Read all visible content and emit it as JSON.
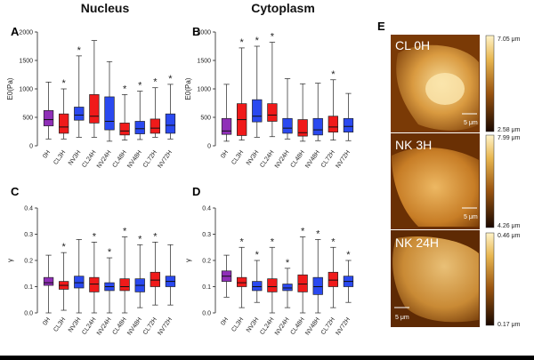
{
  "figure": {
    "nucleus_title": "Nucleus",
    "cytoplasm_title": "Cytoplasm"
  },
  "chart_data": [
    {
      "id": "A",
      "type": "boxplot",
      "region": "Nucleus",
      "ylabel": "E0(Pa)",
      "ylim": [
        0,
        2000
      ],
      "yticks": [
        0,
        500,
        1000,
        1500,
        2000
      ],
      "categories": [
        "0H",
        "CL3H",
        "NV3H",
        "CL24H",
        "NV24H",
        "CL48H",
        "NV48H",
        "CL72H",
        "NV72H"
      ],
      "colors": [
        "purple",
        "red",
        "blue",
        "red",
        "blue",
        "red",
        "blue",
        "red",
        "blue"
      ],
      "significant": [
        false,
        true,
        true,
        false,
        false,
        true,
        true,
        true,
        true
      ],
      "boxes": [
        {
          "min": 120,
          "q1": 350,
          "med": 460,
          "q3": 620,
          "max": 1120
        },
        {
          "min": 120,
          "q1": 220,
          "med": 330,
          "q3": 560,
          "max": 1000
        },
        {
          "min": 150,
          "q1": 450,
          "med": 540,
          "q3": 680,
          "max": 1580
        },
        {
          "min": 150,
          "q1": 400,
          "med": 520,
          "q3": 900,
          "max": 1850
        },
        {
          "min": 80,
          "q1": 280,
          "med": 430,
          "q3": 860,
          "max": 1480
        },
        {
          "min": 100,
          "q1": 190,
          "med": 260,
          "q3": 400,
          "max": 900
        },
        {
          "min": 110,
          "q1": 210,
          "med": 300,
          "q3": 430,
          "max": 960
        },
        {
          "min": 150,
          "q1": 220,
          "med": 310,
          "q3": 470,
          "max": 1020
        },
        {
          "min": 120,
          "q1": 220,
          "med": 360,
          "q3": 560,
          "max": 1080
        }
      ]
    },
    {
      "id": "B",
      "type": "boxplot",
      "region": "Cytoplasm",
      "ylabel": "E0(Pa)",
      "ylim": [
        0,
        2000
      ],
      "yticks": [
        0,
        500,
        1000,
        1500,
        2000
      ],
      "categories": [
        "0H",
        "CL3H",
        "NV3H",
        "CL24H",
        "NV24H",
        "CL48H",
        "NV48H",
        "CL72H",
        "NV72H"
      ],
      "colors": [
        "purple",
        "red",
        "blue",
        "red",
        "blue",
        "red",
        "blue",
        "red",
        "blue"
      ],
      "significant": [
        false,
        true,
        true,
        true,
        false,
        false,
        false,
        true,
        false
      ],
      "boxes": [
        {
          "min": 80,
          "q1": 200,
          "med": 260,
          "q3": 480,
          "max": 1080
        },
        {
          "min": 100,
          "q1": 180,
          "med": 460,
          "q3": 740,
          "max": 1720
        },
        {
          "min": 150,
          "q1": 420,
          "med": 520,
          "q3": 810,
          "max": 1750
        },
        {
          "min": 160,
          "q1": 430,
          "med": 540,
          "q3": 740,
          "max": 1820
        },
        {
          "min": 120,
          "q1": 220,
          "med": 310,
          "q3": 480,
          "max": 1180
        },
        {
          "min": 80,
          "q1": 170,
          "med": 230,
          "q3": 460,
          "max": 1090
        },
        {
          "min": 90,
          "q1": 190,
          "med": 280,
          "q3": 480,
          "max": 1100
        },
        {
          "min": 100,
          "q1": 240,
          "med": 330,
          "q3": 520,
          "max": 1160
        },
        {
          "min": 90,
          "q1": 240,
          "med": 340,
          "q3": 480,
          "max": 920
        }
      ]
    },
    {
      "id": "C",
      "type": "boxplot",
      "region": "Nucleus",
      "ylabel": "γ",
      "ylim": [
        0,
        0.4
      ],
      "yticks": [
        0.0,
        0.1,
        0.2,
        0.3,
        0.4
      ],
      "categories": [
        "0H",
        "CL3H",
        "NV3H",
        "CL24H",
        "NV24H",
        "CL48H",
        "NV48H",
        "CL72H",
        "NV72H"
      ],
      "colors": [
        "purple",
        "red",
        "blue",
        "red",
        "blue",
        "red",
        "blue",
        "red",
        "blue"
      ],
      "significant": [
        false,
        true,
        false,
        true,
        true,
        true,
        true,
        true,
        false
      ],
      "boxes": [
        {
          "min": 0.0,
          "q1": 0.105,
          "med": 0.115,
          "q3": 0.135,
          "max": 0.22
        },
        {
          "min": 0.01,
          "q1": 0.09,
          "med": 0.105,
          "q3": 0.12,
          "max": 0.23
        },
        {
          "min": 0.0,
          "q1": 0.095,
          "med": 0.115,
          "q3": 0.14,
          "max": 0.28
        },
        {
          "min": 0.0,
          "q1": 0.08,
          "med": 0.11,
          "q3": 0.135,
          "max": 0.27
        },
        {
          "min": 0.0,
          "q1": 0.085,
          "med": 0.1,
          "q3": 0.115,
          "max": 0.21
        },
        {
          "min": 0.0,
          "q1": 0.085,
          "med": 0.1,
          "q3": 0.13,
          "max": 0.29
        },
        {
          "min": 0.02,
          "q1": 0.08,
          "med": 0.105,
          "q3": 0.13,
          "max": 0.26
        },
        {
          "min": 0.03,
          "q1": 0.1,
          "med": 0.125,
          "q3": 0.155,
          "max": 0.27
        },
        {
          "min": 0.03,
          "q1": 0.1,
          "med": 0.12,
          "q3": 0.14,
          "max": 0.26
        }
      ]
    },
    {
      "id": "D",
      "type": "boxplot",
      "region": "Cytoplasm",
      "ylabel": "γ",
      "ylim": [
        0,
        0.4
      ],
      "yticks": [
        0.0,
        0.1,
        0.2,
        0.3,
        0.4
      ],
      "categories": [
        "0H",
        "CL3H",
        "NV3H",
        "CL24H",
        "NV24H",
        "CL48H",
        "NV48H",
        "CL72H",
        "NV72H"
      ],
      "colors": [
        "purple",
        "red",
        "blue",
        "red",
        "blue",
        "red",
        "blue",
        "red",
        "blue"
      ],
      "significant": [
        false,
        true,
        true,
        true,
        true,
        true,
        true,
        true,
        true
      ],
      "boxes": [
        {
          "min": 0.06,
          "q1": 0.12,
          "med": 0.14,
          "q3": 0.16,
          "max": 0.22
        },
        {
          "min": 0.02,
          "q1": 0.1,
          "med": 0.115,
          "q3": 0.135,
          "max": 0.25
        },
        {
          "min": 0.04,
          "q1": 0.085,
          "med": 0.1,
          "q3": 0.12,
          "max": 0.2
        },
        {
          "min": 0.0,
          "q1": 0.08,
          "med": 0.1,
          "q3": 0.13,
          "max": 0.25
        },
        {
          "min": 0.02,
          "q1": 0.085,
          "med": 0.095,
          "q3": 0.11,
          "max": 0.17
        },
        {
          "min": 0.0,
          "q1": 0.08,
          "med": 0.11,
          "q3": 0.145,
          "max": 0.29
        },
        {
          "min": 0.0,
          "q1": 0.07,
          "med": 0.1,
          "q3": 0.135,
          "max": 0.28
        },
        {
          "min": 0.02,
          "q1": 0.1,
          "med": 0.125,
          "q3": 0.155,
          "max": 0.25
        },
        {
          "min": 0.04,
          "q1": 0.1,
          "med": 0.12,
          "q3": 0.14,
          "max": 0.2
        }
      ]
    }
  ],
  "colors": {
    "purple": "#8f2fb8",
    "red": "#f01a1a",
    "blue": "#2a49f0"
  },
  "afm": {
    "panel_letter": "E",
    "scale_label": "5 μm",
    "images": [
      {
        "label": "CL 0H",
        "cb_top": "7.05 μm",
        "cb_bottom": "2.58 μm"
      },
      {
        "label": "NK 3H",
        "cb_top": "7.99 μm",
        "cb_bottom": "4.26 μm"
      },
      {
        "label": "NK 24H",
        "cb_top": "0.46 μm",
        "cb_bottom": "0.17 μm"
      }
    ]
  }
}
